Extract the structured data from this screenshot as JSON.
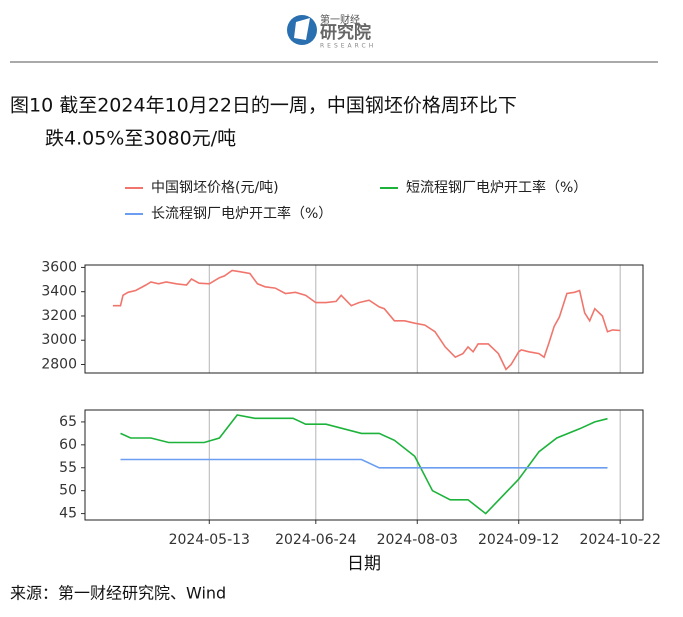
{
  "header": {
    "logo_top": "第一财经",
    "logo_main": "研究院",
    "logo_sub": "RESEARCH"
  },
  "figure_title": [
    "图10  截至2024年10月22日的一周，中国钢坯价格周环比下",
    "跌4.05%至3080元/吨"
  ],
  "chart_data": [
    {
      "type": "line",
      "series": [
        {
          "name": "中国钢坯价格(元/吨)",
          "color": "#f0766d",
          "x": [
            "2024-04-05",
            "2024-04-08",
            "2024-04-09",
            "2024-04-11",
            "2024-04-14",
            "2024-04-18",
            "2024-04-20",
            "2024-04-23",
            "2024-04-26",
            "2024-04-30",
            "2024-05-04",
            "2024-05-06",
            "2024-05-09",
            "2024-05-13",
            "2024-05-17",
            "2024-05-19",
            "2024-05-22",
            "2024-05-25",
            "2024-05-29",
            "2024-06-01",
            "2024-06-04",
            "2024-06-08",
            "2024-06-12",
            "2024-06-16",
            "2024-06-20",
            "2024-06-24",
            "2024-06-28",
            "2024-07-02",
            "2024-07-04",
            "2024-07-08",
            "2024-07-11",
            "2024-07-15",
            "2024-07-19",
            "2024-07-21",
            "2024-07-25",
            "2024-07-29",
            "2024-08-02",
            "2024-08-06",
            "2024-08-10",
            "2024-08-14",
            "2024-08-18",
            "2024-08-21",
            "2024-08-23",
            "2024-08-25",
            "2024-08-27",
            "2024-08-31",
            "2024-09-04",
            "2024-09-07",
            "2024-09-09",
            "2024-09-12",
            "2024-09-13",
            "2024-09-16",
            "2024-09-20",
            "2024-09-22",
            "2024-09-24",
            "2024-09-26",
            "2024-09-28",
            "2024-10-01",
            "2024-10-04",
            "2024-10-06",
            "2024-10-08",
            "2024-10-10",
            "2024-10-12",
            "2024-10-15",
            "2024-10-17",
            "2024-10-19",
            "2024-10-22"
          ],
          "values": [
            3285,
            3285,
            3370,
            3395,
            3410,
            3455,
            3480,
            3465,
            3480,
            3465,
            3455,
            3505,
            3470,
            3465,
            3515,
            3530,
            3575,
            3565,
            3550,
            3465,
            3440,
            3430,
            3385,
            3395,
            3370,
            3310,
            3310,
            3320,
            3370,
            3285,
            3310,
            3330,
            3275,
            3260,
            3160,
            3160,
            3140,
            3125,
            3070,
            2945,
            2860,
            2890,
            2945,
            2905,
            2970,
            2970,
            2890,
            2760,
            2800,
            2905,
            2920,
            2905,
            2890,
            2860,
            2985,
            3115,
            3190,
            3385,
            3395,
            3410,
            3225,
            3160,
            3260,
            3200,
            3070,
            3085,
            3080
          ]
        }
      ],
      "xlim": [
        "2024-03-25",
        "2024-10-31"
      ],
      "ylim": [
        2730,
        3620
      ],
      "yticks": [
        2800,
        3000,
        3200,
        3400,
        3600
      ],
      "grid": "x"
    },
    {
      "type": "line",
      "series": [
        {
          "name": "短流程钢厂电炉开工率（%）",
          "color": "#1db33b",
          "x": [
            "2024-04-08",
            "2024-04-12",
            "2024-04-20",
            "2024-04-27",
            "2024-05-11",
            "2024-05-17",
            "2024-05-24",
            "2024-05-31",
            "2024-06-15",
            "2024-06-20",
            "2024-06-28",
            "2024-07-12",
            "2024-07-19",
            "2024-07-25",
            "2024-08-02",
            "2024-08-09",
            "2024-08-16",
            "2024-08-23",
            "2024-08-30",
            "2024-09-12",
            "2024-09-20",
            "2024-09-27",
            "2024-10-06",
            "2024-10-12",
            "2024-10-17"
          ],
          "values": [
            62.5,
            61.5,
            61.5,
            60.5,
            60.5,
            61.5,
            66.5,
            65.8,
            65.8,
            64.5,
            64.5,
            62.5,
            62.5,
            61,
            57.5,
            50,
            48,
            48,
            45,
            52.5,
            58.5,
            61.5,
            63.5,
            65,
            65.7
          ]
        },
        {
          "name": "长流程钢厂电炉开工率（%）",
          "color": "#6b9ef0",
          "x": [
            "2024-04-08",
            "2024-07-12",
            "2024-07-19",
            "2024-10-17"
          ],
          "values": [
            56.8,
            56.8,
            55,
            55
          ]
        }
      ],
      "xlim": [
        "2024-03-25",
        "2024-10-31"
      ],
      "ylim": [
        43.6,
        67.6
      ],
      "yticks": [
        45,
        50,
        55,
        60,
        65
      ],
      "xticks": [
        "2024-05-13",
        "2024-06-24",
        "2024-08-03",
        "2024-09-12",
        "2024-10-22"
      ],
      "xlabel": "日期",
      "grid": "x"
    }
  ],
  "source": "来源：第一财经研究院、Wind"
}
